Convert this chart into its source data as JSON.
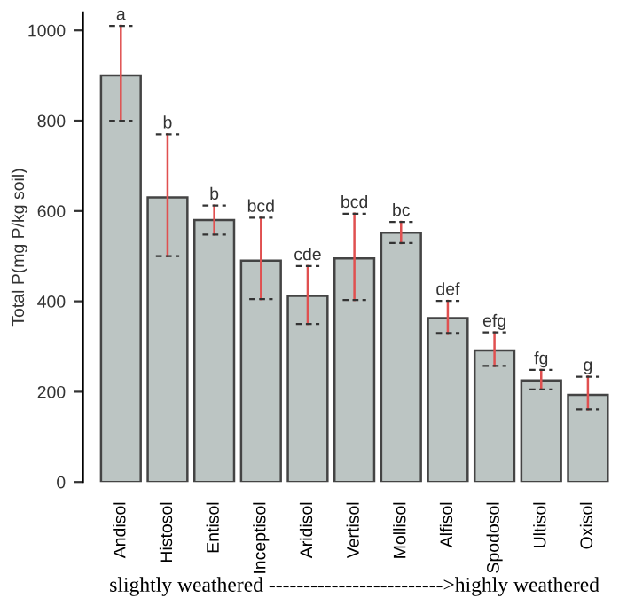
{
  "chart_data": {
    "type": "bar",
    "ylabel": "Total P(mg P/kg soil)",
    "xlabel": "slightly weathered ------------------------->highly weathered",
    "categories": [
      "Andisol",
      "Histosol",
      "Entisol",
      "Inceptisol",
      "Aridisol",
      "Vertisol",
      "Mollisol",
      "Alfisol",
      "Spodosol",
      "Ultisol",
      "Oxisol"
    ],
    "values": [
      900,
      630,
      580,
      490,
      412,
      495,
      552,
      363,
      291,
      225,
      193
    ],
    "color": "#bcc5c3",
    "errors": [
      [
        800,
        1010
      ],
      [
        500,
        770
      ],
      [
        548,
        612
      ],
      [
        405,
        585
      ],
      [
        350,
        478
      ],
      [
        403,
        594
      ],
      [
        529,
        576
      ],
      [
        330,
        401
      ],
      [
        257,
        331
      ],
      [
        205,
        248
      ],
      [
        161,
        233
      ]
    ],
    "annotations": [
      {
        "text": "a",
        "x": "Andisol",
        "y": 1010
      },
      {
        "text": "b",
        "x": "Histosol",
        "y": 770
      },
      {
        "text": "b",
        "x": "Entisol",
        "y": 612
      },
      {
        "text": "bcd",
        "x": "Inceptisol",
        "y": 585
      },
      {
        "text": "cde",
        "x": "Aridisol",
        "y": 478
      },
      {
        "text": "bcd",
        "x": "Vertisol",
        "y": 594
      },
      {
        "text": "bc",
        "x": "Mollisol",
        "y": 576
      },
      {
        "text": "def",
        "x": "Alfisol",
        "y": 401
      },
      {
        "text": "efg",
        "x": "Spodosol",
        "y": 331
      },
      {
        "text": "fg",
        "x": "Ultisol",
        "y": 248
      },
      {
        "text": "g",
        "x": "Oxisol",
        "y": 233
      }
    ],
    "ylim": [
      0,
      1040
    ],
    "yticks": [
      0,
      200,
      400,
      600,
      800,
      1000
    ],
    "grid": false
  }
}
